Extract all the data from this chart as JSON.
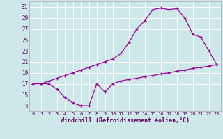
{
  "xlabel": "Windchill (Refroidissement éolien,°C)",
  "ylabel": "",
  "bg_color": "#cce8e8",
  "grid_color": "#ffffff",
  "line_color": "#990099",
  "hours": [
    0,
    1,
    2,
    3,
    4,
    5,
    6,
    7,
    8,
    9,
    10,
    11,
    12,
    13,
    14,
    15,
    16,
    17,
    18,
    19,
    20,
    21,
    22,
    23
  ],
  "temp": [
    17.0,
    17.0,
    17.5,
    18.0,
    18.5,
    19.0,
    19.5,
    20.0,
    20.5,
    21.0,
    21.5,
    22.5,
    24.5,
    27.0,
    28.5,
    30.5,
    30.8,
    30.5,
    30.7,
    29.0,
    26.0,
    25.5,
    23.0,
    20.5
  ],
  "windchill": [
    17.0,
    17.0,
    17.0,
    16.0,
    14.5,
    13.5,
    13.0,
    13.0,
    17.0,
    15.5,
    17.0,
    17.5,
    17.8,
    18.0,
    18.3,
    18.5,
    18.8,
    19.0,
    19.3,
    19.5,
    19.8,
    20.0,
    20.2,
    20.5
  ],
  "ylim": [
    12,
    32
  ],
  "xlim": [
    -0.5,
    23.5
  ],
  "yticks": [
    13,
    15,
    17,
    19,
    21,
    23,
    25,
    27,
    29,
    31
  ],
  "xticks": [
    0,
    1,
    2,
    3,
    4,
    5,
    6,
    7,
    8,
    9,
    10,
    11,
    12,
    13,
    14,
    15,
    16,
    17,
    18,
    19,
    20,
    21,
    22,
    23
  ]
}
